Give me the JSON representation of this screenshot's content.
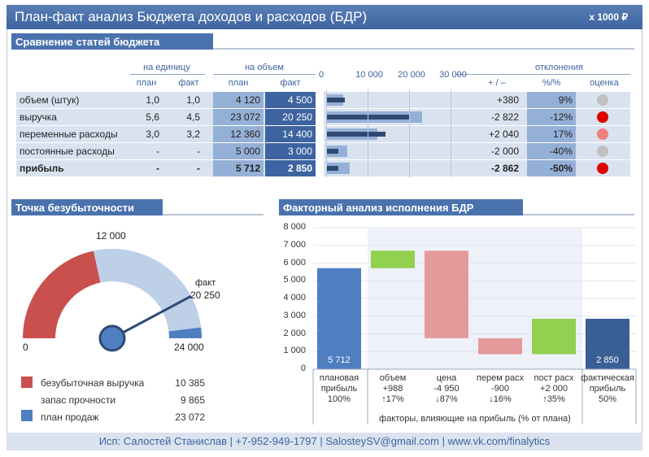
{
  "header": {
    "title": "План-факт анализ Бюджета доходов и расходов (БДР)",
    "unit": "х 1000 ₽"
  },
  "budget": {
    "section_title": "Сравнение статей бюджета",
    "group_per_unit": "на единицу",
    "group_volume": "на объем",
    "group_deviation": "отклонения",
    "col_plan": "план",
    "col_fact": "факт",
    "col_plus_minus": "+ / –",
    "col_percent": "%/%",
    "col_rating": "оценка",
    "axis_ticks": [
      "0",
      "10 000",
      "20 000",
      "30 000"
    ],
    "rows": [
      {
        "name": "объем (штук)",
        "unit_plan": "1,0",
        "unit_fact": "1,0",
        "vol_plan": "4 120",
        "vol_fact": "4 500",
        "dev": "+380",
        "pct": "9%",
        "rating_color": "#c0c0c0",
        "bold": false,
        "bar_plan": 4120,
        "bar_fact": 4500
      },
      {
        "name": "выручка",
        "unit_plan": "5,6",
        "unit_fact": "4,5",
        "vol_plan": "23 072",
        "vol_fact": "20 250",
        "dev": "-2 822",
        "pct": "-12%",
        "rating_color": "#e00000",
        "bold": false,
        "bar_plan": 23072,
        "bar_fact": 20250
      },
      {
        "name": "переменные расходы",
        "unit_plan": "3,0",
        "unit_fact": "3,2",
        "vol_plan": "12 360",
        "vol_fact": "14 400",
        "dev": "+2 040",
        "pct": "17%",
        "rating_color": "#f08080",
        "bold": false,
        "bar_plan": 12360,
        "bar_fact": 14400
      },
      {
        "name": "постоянные расходы",
        "unit_plan": "-",
        "unit_fact": "-",
        "vol_plan": "5 000",
        "vol_fact": "3 000",
        "dev": "-2 000",
        "pct": "-40%",
        "rating_color": "#c0c0c0",
        "bold": false,
        "bar_plan": 5000,
        "bar_fact": 3000
      },
      {
        "name": "прибыль",
        "unit_plan": "-",
        "unit_fact": "-",
        "vol_plan": "5 712",
        "vol_fact": "2 850",
        "dev": "-2 862",
        "pct": "-50%",
        "rating_color": "#e00000",
        "bold": true,
        "bar_plan": 5712,
        "bar_fact": 2850
      }
    ]
  },
  "breakeven": {
    "section_title": "Точка безубыточности",
    "label_zero": "0",
    "label_mid": "12 000",
    "label_max": "24 000",
    "label_fact": "факт",
    "label_fact_value": "20 250",
    "gauge_max": 24000,
    "breakeven_value": 10385,
    "plan_value": 23072,
    "fact_value": 20250,
    "legend": [
      {
        "label": "безубыточная выручка",
        "value": "10 385",
        "color": "#c9504d"
      },
      {
        "label": "запас прочности",
        "value": "9 865",
        "color": ""
      },
      {
        "label": "план продаж",
        "value": "23 072",
        "color": "#4f7fc1"
      }
    ]
  },
  "factor": {
    "section_title": "Факторный анализ исполнения БДР",
    "factors_caption": "факторы, влияющие на прибыль (% от плана)",
    "chart_data": {
      "type": "bar",
      "title": "Факторный анализ исполнения БДР",
      "ylim": [
        0,
        8000
      ],
      "y_ticks": [
        "0",
        "1 000",
        "2 000",
        "3 000",
        "4 000",
        "5 000",
        "6 000",
        "7 000",
        "8 000"
      ],
      "bars": [
        {
          "cat": "плановая прибыль",
          "cat_lines": [
            "плановая",
            "прибыль",
            "100%"
          ],
          "base": 0,
          "top": 5712,
          "color": "#4f7fc1",
          "label": "5 712"
        },
        {
          "cat": "объем",
          "cat_lines": [
            "объем",
            "+988",
            "↑17%"
          ],
          "base": 5712,
          "top": 6700,
          "color": "#92d050",
          "label": ""
        },
        {
          "cat": "цена",
          "cat_lines": [
            "цена",
            "-4 950",
            "↓87%"
          ],
          "base": 1750,
          "top": 6700,
          "color": "#e6999b",
          "label": ""
        },
        {
          "cat": "перем расх",
          "cat_lines": [
            "перем расх",
            "-900",
            "↓16%"
          ],
          "base": 850,
          "top": 1750,
          "color": "#e6999b",
          "label": ""
        },
        {
          "cat": "пост расх",
          "cat_lines": [
            "пост расх",
            "+2 000",
            "↑35%"
          ],
          "base": 850,
          "top": 2850,
          "color": "#92d050",
          "label": ""
        },
        {
          "cat": "фактическая прибыль",
          "cat_lines": [
            "фактическая",
            "прибыль",
            "50%"
          ],
          "base": 0,
          "top": 2850,
          "color": "#3a5f94",
          "label": "2 850"
        }
      ]
    }
  },
  "footer": {
    "text": "Исп: Салостей Станислав | +7-952-949-1797 | SalosteySV@gmail.com | www.vk.com/finalytics"
  }
}
